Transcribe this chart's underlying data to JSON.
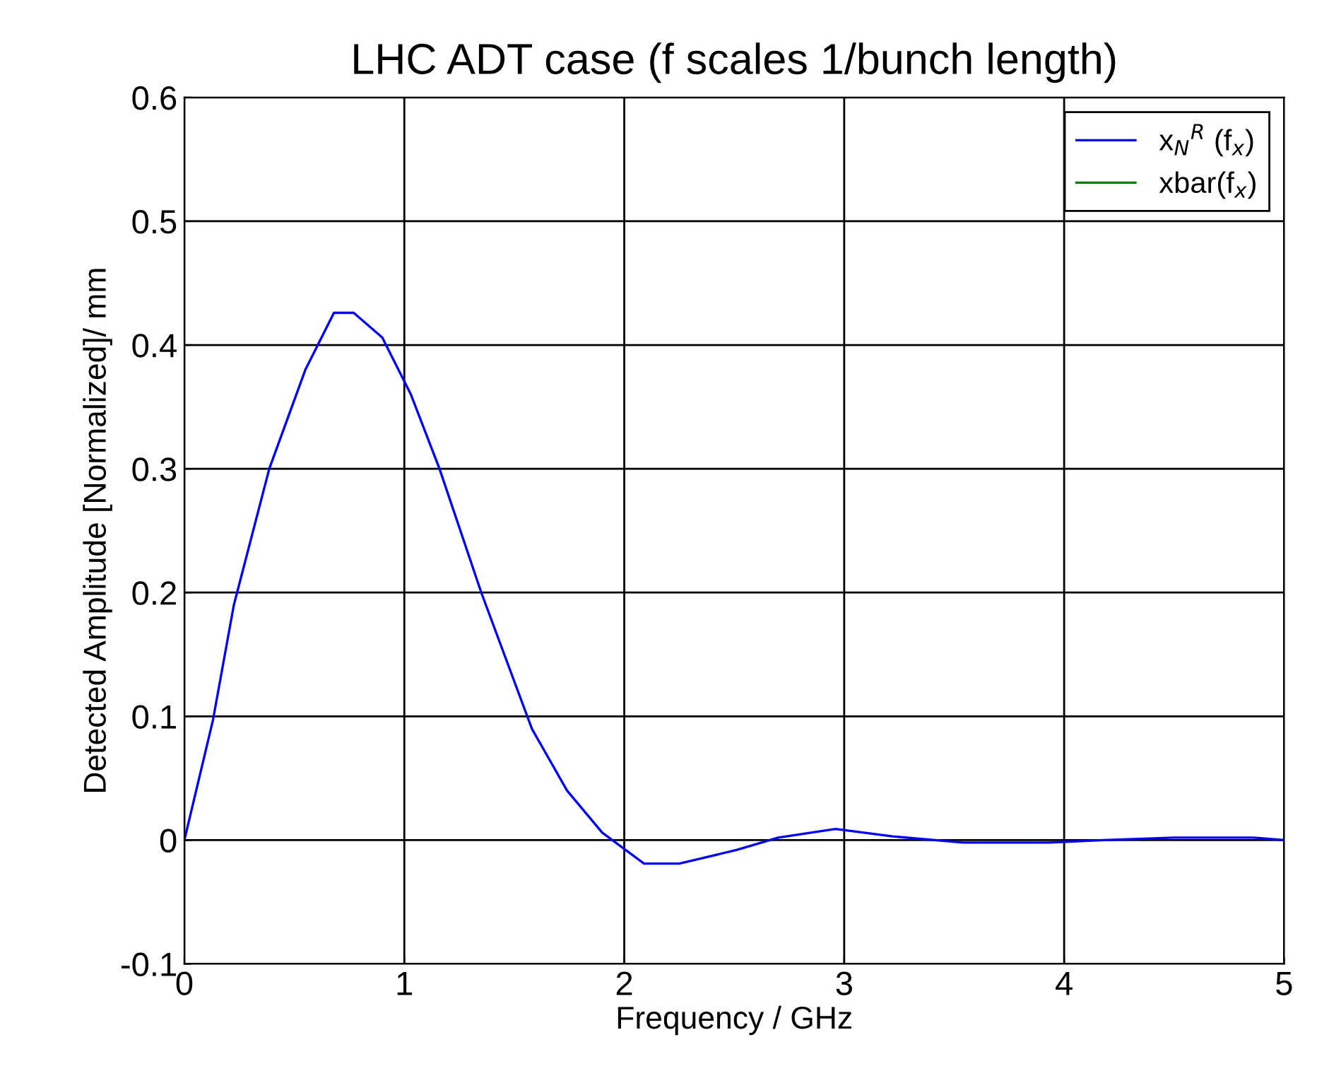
{
  "chart_data": {
    "type": "line",
    "title": "LHC ADT case (f scales 1/bunch length)",
    "xlabel": "Frequency / GHz",
    "ylabel": "Detected Amplitude [Normalized]/ mm",
    "x": [
      0,
      0.13,
      0.225,
      0.386,
      0.55,
      0.68,
      0.77,
      0.9,
      1.03,
      1.16,
      1.35,
      1.58,
      1.74,
      1.9,
      2.09,
      2.25,
      2.51,
      2.7,
      2.96,
      3.22,
      3.54,
      3.93,
      4.18,
      4.5,
      4.86,
      5
    ],
    "series": [
      {
        "name": "x$_{N}$$^{R}$ (f$_{x}$)",
        "color": "#0000ff",
        "values": [
          0,
          0.097,
          0.19,
          0.3,
          0.38,
          0.426,
          0.426,
          0.406,
          0.36,
          0.3,
          0.2,
          0.09,
          0.04,
          0.006,
          -0.019,
          -0.019,
          -0.008,
          0.002,
          0.009,
          0.003,
          -0.002,
          -0.002,
          0,
          0.002,
          0.002,
          0
        ]
      },
      {
        "name": "xbar(f$_{x}$)",
        "color": "#008000",
        "values": [
          null,
          null,
          null,
          null,
          null,
          null,
          null,
          null,
          null,
          null,
          null,
          null,
          null,
          null,
          null,
          null,
          null,
          null,
          null,
          null,
          null,
          null,
          null,
          null,
          null,
          null
        ]
      }
    ],
    "xlim": [
      0,
      5
    ],
    "xticks": [
      0,
      1,
      2,
      3,
      4,
      5
    ],
    "ylim": [
      -0.1,
      0.6
    ],
    "yticks": [
      -0.1,
      0,
      0.1,
      0.2,
      0.3,
      0.4,
      0.5,
      0.6
    ],
    "grid": true,
    "legend": "top right",
    "marker": "none",
    "line_style": "solid"
  }
}
